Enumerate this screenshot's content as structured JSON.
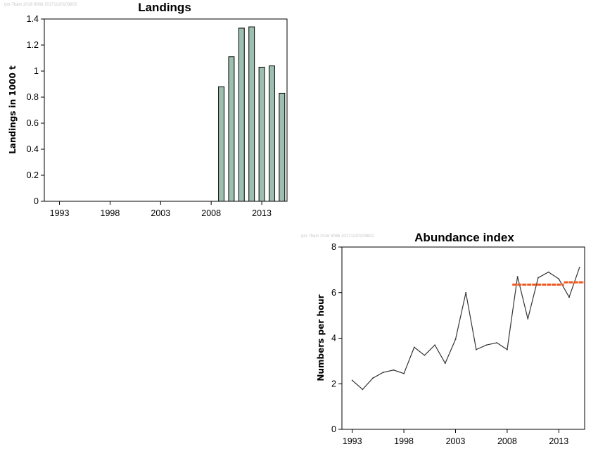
{
  "stamps": {
    "landings": "rjm-7bam 2016 8066 20171120103602",
    "abundance": "rjm-7bam 2016 8066 20171120103602"
  },
  "chart_data": [
    {
      "type": "bar",
      "title": "Landings",
      "xlabel": "",
      "ylabel": "Landings in 1000 t",
      "xlim": [
        1991.5,
        2015.5
      ],
      "ylim": [
        0,
        1.4
      ],
      "x_ticks": [
        1993,
        1998,
        2003,
        2008,
        2013
      ],
      "y_ticks": [
        0,
        0.2,
        0.4,
        0.6,
        0.8,
        1,
        1.2,
        1.4
      ],
      "y_tick_labels": [
        "0",
        "0.2",
        "0.4",
        "0.6",
        "0.8",
        "1",
        "1.2",
        "1.4"
      ],
      "x": [
        2009,
        2010,
        2011,
        2012,
        2013,
        2014,
        2015
      ],
      "values": [
        0.88,
        1.11,
        1.33,
        1.34,
        1.03,
        1.04,
        0.83
      ],
      "bar_color": "#9dbfb0",
      "grid": false
    },
    {
      "type": "line",
      "title": "Abundance index",
      "xlabel": "",
      "ylabel": "Numbers per hour",
      "xlim": [
        1992,
        2015.5
      ],
      "ylim": [
        0,
        8
      ],
      "x_ticks": [
        1993,
        1998,
        2003,
        2008,
        2013
      ],
      "y_ticks": [
        0,
        2,
        4,
        6,
        8
      ],
      "series": [
        {
          "x": [
            1993,
            1994,
            1995,
            1996,
            1997,
            1998,
            1999,
            2000,
            2001,
            2002,
            2003,
            2004,
            2005,
            2006,
            2007,
            2008,
            2009,
            2010,
            2011,
            2012,
            2013,
            2014,
            2015
          ],
          "values": [
            2.15,
            1.75,
            2.25,
            2.5,
            2.6,
            2.45,
            3.6,
            3.25,
            3.7,
            2.9,
            3.95,
            6.0,
            3.5,
            3.7,
            3.8,
            3.5,
            6.7,
            4.85,
            6.65,
            6.9,
            6.6,
            5.8,
            7.1
          ],
          "color": "#333333"
        }
      ],
      "reference_lines": [
        {
          "x_range": [
            2008.5,
            2013.5
          ],
          "value": 6.35,
          "color": "#f05a22"
        },
        {
          "x_range": [
            2013.5,
            2015.5
          ],
          "value": 6.45,
          "color": "#f05a22"
        }
      ],
      "grid": false
    }
  ]
}
